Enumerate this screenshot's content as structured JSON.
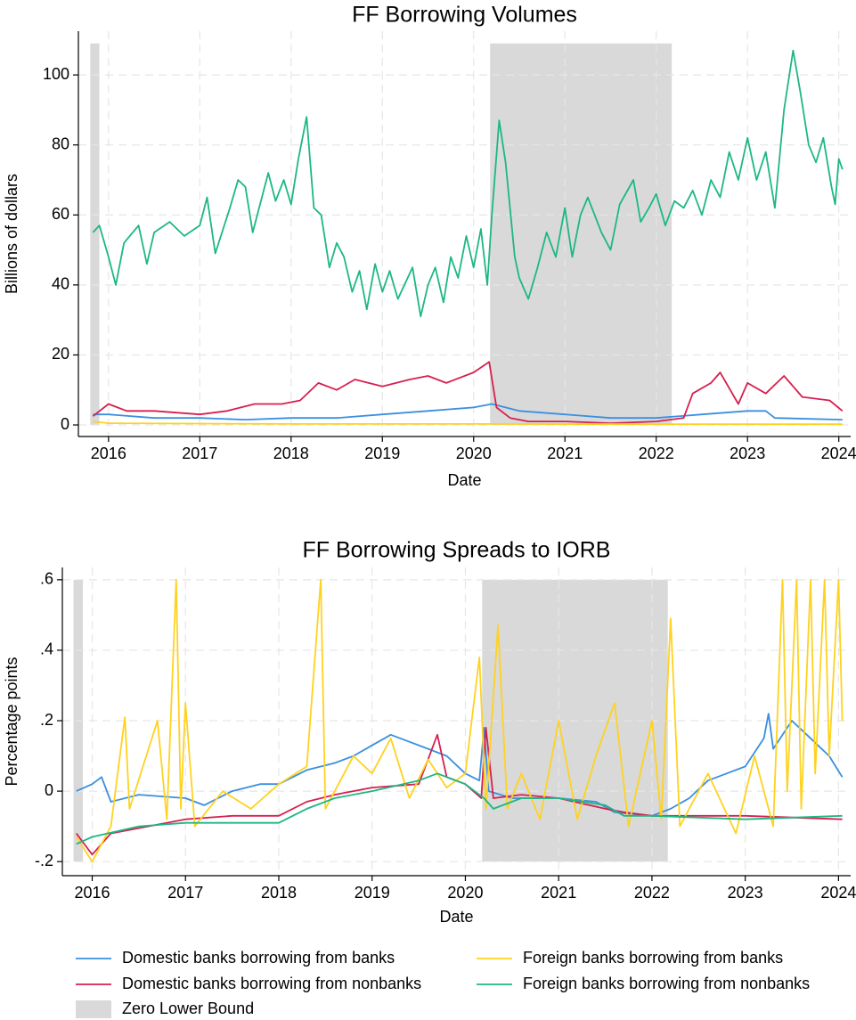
{
  "chart_data": [
    {
      "type": "line",
      "title": "FF Borrowing Volumes",
      "x_label": "Date",
      "y_label": "Billions of dollars",
      "xlim": [
        2015.67,
        2024.13
      ],
      "ylim": [
        -3.3,
        112.5
      ],
      "xticks": [
        2016,
        2017,
        2018,
        2019,
        2020,
        2021,
        2022,
        2023,
        2024
      ],
      "yticks": [
        0,
        20,
        40,
        60,
        80,
        100
      ],
      "grid": true,
      "shade": {
        "name": "Zero Lower Bound",
        "color": "#d9d9d9",
        "span": [
          0,
          109
        ],
        "ranges": [
          [
            2015.8,
            2015.9
          ],
          [
            2020.18,
            2022.17
          ]
        ]
      },
      "series": [
        {
          "name": "Domestic banks borrowing from banks",
          "color": "#3a8fe0",
          "x": [
            2015.83,
            2016.0,
            2016.5,
            2017.0,
            2017.5,
            2018.0,
            2018.5,
            2019.0,
            2019.5,
            2020.0,
            2020.2,
            2020.5,
            2021.0,
            2021.5,
            2022.0,
            2022.5,
            2023.0,
            2023.2,
            2023.3,
            2024.04
          ],
          "values": [
            3,
            3,
            2,
            2,
            1.5,
            2,
            2,
            3,
            4,
            5,
            6,
            4,
            3,
            2,
            2,
            3,
            4,
            4,
            2,
            1.5
          ]
        },
        {
          "name": "Domestic banks borrowing from nonbanks",
          "color": "#d6204f",
          "x": [
            2015.83,
            2016.0,
            2016.2,
            2016.5,
            2017.0,
            2017.3,
            2017.6,
            2017.9,
            2018.1,
            2018.3,
            2018.5,
            2018.7,
            2019.0,
            2019.3,
            2019.5,
            2019.7,
            2020.0,
            2020.17,
            2020.25,
            2020.4,
            2020.6,
            2021.0,
            2021.5,
            2022.0,
            2022.3,
            2022.4,
            2022.6,
            2022.7,
            2022.9,
            2023.0,
            2023.2,
            2023.4,
            2023.6,
            2023.9,
            2024.04
          ],
          "values": [
            2.5,
            6,
            4,
            4,
            3,
            4,
            6,
            6,
            7,
            12,
            10,
            13,
            11,
            13,
            14,
            12,
            15,
            18,
            5,
            2,
            1,
            1,
            0.5,
            1,
            2,
            9,
            12,
            15,
            6,
            12,
            9,
            14,
            8,
            7,
            4
          ]
        },
        {
          "name": "Foreign banks borrowing from banks",
          "color": "#ffd21f",
          "x": [
            2015.83,
            2016.0,
            2018.0,
            2020.0,
            2022.0,
            2024.04
          ],
          "values": [
            1,
            0.5,
            0.3,
            0.3,
            0.2,
            0.2
          ]
        },
        {
          "name": "Foreign banks borrowing from nonbanks",
          "color": "#1db785",
          "x": [
            2015.83,
            2015.9,
            2016.0,
            2016.08,
            2016.17,
            2016.33,
            2016.42,
            2016.5,
            2016.67,
            2016.83,
            2017.0,
            2017.08,
            2017.17,
            2017.33,
            2017.42,
            2017.5,
            2017.58,
            2017.75,
            2017.83,
            2017.92,
            2018.0,
            2018.08,
            2018.17,
            2018.25,
            2018.33,
            2018.42,
            2018.5,
            2018.58,
            2018.67,
            2018.75,
            2018.83,
            2018.92,
            2019.0,
            2019.08,
            2019.17,
            2019.33,
            2019.42,
            2019.5,
            2019.58,
            2019.67,
            2019.75,
            2019.83,
            2019.92,
            2020.0,
            2020.08,
            2020.15,
            2020.2,
            2020.28,
            2020.35,
            2020.45,
            2020.5,
            2020.6,
            2020.7,
            2020.8,
            2020.9,
            2021.0,
            2021.08,
            2021.17,
            2021.25,
            2021.4,
            2021.5,
            2021.6,
            2021.75,
            2021.83,
            2021.92,
            2022.0,
            2022.1,
            2022.2,
            2022.3,
            2022.4,
            2022.5,
            2022.6,
            2022.7,
            2022.8,
            2022.9,
            2023.0,
            2023.1,
            2023.2,
            2023.3,
            2023.4,
            2023.5,
            2023.58,
            2023.67,
            2023.75,
            2023.83,
            2023.92,
            2023.96,
            2024.0,
            2024.04
          ],
          "values": [
            55,
            57,
            48,
            40,
            52,
            57,
            46,
            55,
            58,
            54,
            57,
            65,
            49,
            62,
            70,
            68,
            55,
            72,
            64,
            70,
            63,
            76,
            88,
            62,
            60,
            45,
            52,
            48,
            38,
            44,
            33,
            46,
            38,
            44,
            36,
            45,
            31,
            40,
            45,
            35,
            48,
            42,
            54,
            45,
            56,
            40,
            60,
            87,
            75,
            48,
            42,
            36,
            45,
            55,
            48,
            62,
            48,
            60,
            65,
            55,
            50,
            63,
            70,
            58,
            62,
            66,
            57,
            64,
            62,
            67,
            60,
            70,
            65,
            78,
            70,
            82,
            70,
            78,
            62,
            90,
            107,
            95,
            80,
            75,
            82,
            68,
            63,
            76,
            73
          ]
        }
      ]
    },
    {
      "type": "line",
      "title": "FF Borrowing Spreads to IORB",
      "x_label": "Date",
      "y_label": "Percentage points",
      "xlim": [
        2015.68,
        2024.13
      ],
      "ylim": [
        -0.24,
        0.635
      ],
      "xticks": [
        2016,
        2017,
        2018,
        2019,
        2020,
        2021,
        2022,
        2023,
        2024
      ],
      "yticks": [
        {
          "value": -0.2,
          "label": "-.2"
        },
        0,
        {
          "value": 0.2,
          "label": ".2"
        },
        {
          "value": 0.4,
          "label": ".4"
        },
        {
          "value": 0.6,
          "label": ".6"
        }
      ],
      "grid": true,
      "shade": {
        "color": "#d9d9d9",
        "span": [
          -0.2,
          0.6
        ],
        "ranges": [
          [
            2015.8,
            2015.9
          ],
          [
            2020.18,
            2022.17
          ]
        ]
      },
      "series": [
        {
          "color": "#3a8fe0",
          "x": [
            2015.83,
            2016.0,
            2016.1,
            2016.2,
            2016.5,
            2017.0,
            2017.2,
            2017.5,
            2017.8,
            2018.0,
            2018.3,
            2018.6,
            2018.8,
            2019.0,
            2019.2,
            2019.4,
            2019.6,
            2019.8,
            2020.0,
            2020.15,
            2020.2,
            2020.25,
            2020.5,
            2021.0,
            2021.4,
            2021.6,
            2022.0,
            2022.2,
            2022.4,
            2022.6,
            2022.8,
            2023.0,
            2023.2,
            2023.25,
            2023.3,
            2023.5,
            2023.7,
            2023.9,
            2024.04
          ],
          "values": [
            0,
            0.02,
            0.04,
            -0.03,
            -0.01,
            -0.02,
            -0.04,
            0,
            0.02,
            0.02,
            0.06,
            0.08,
            0.1,
            0.13,
            0.16,
            0.14,
            0.12,
            0.1,
            0.05,
            0.03,
            0.18,
            0,
            -0.02,
            -0.02,
            -0.03,
            -0.06,
            -0.07,
            -0.05,
            -0.02,
            0.03,
            0.05,
            0.07,
            0.15,
            0.22,
            0.12,
            0.2,
            0.15,
            0.1,
            0.04
          ]
        },
        {
          "color": "#d6204f",
          "x": [
            2015.83,
            2016.0,
            2016.2,
            2016.6,
            2017.0,
            2017.5,
            2018.0,
            2018.3,
            2018.6,
            2019.0,
            2019.5,
            2019.7,
            2019.8,
            2020.0,
            2020.17,
            2020.22,
            2020.3,
            2020.6,
            2021.0,
            2021.5,
            2021.7,
            2022.0,
            2023.0,
            2024.04
          ],
          "values": [
            -0.12,
            -0.18,
            -0.12,
            -0.1,
            -0.08,
            -0.07,
            -0.07,
            -0.03,
            -0.01,
            0.01,
            0.02,
            0.16,
            0.04,
            0.02,
            -0.02,
            0.18,
            -0.02,
            -0.01,
            -0.02,
            -0.05,
            -0.06,
            -0.07,
            -0.07,
            -0.08
          ]
        },
        {
          "color": "#ffd21f",
          "x": [
            2015.83,
            2016.0,
            2016.2,
            2016.35,
            2016.4,
            2016.7,
            2016.8,
            2016.9,
            2016.95,
            2017.0,
            2017.1,
            2017.4,
            2017.7,
            2018.0,
            2018.3,
            2018.45,
            2018.5,
            2018.8,
            2019.0,
            2019.2,
            2019.4,
            2019.6,
            2019.8,
            2020.0,
            2020.15,
            2020.22,
            2020.35,
            2020.45,
            2020.6,
            2020.8,
            2021.0,
            2021.2,
            2021.4,
            2021.6,
            2021.75,
            2022.0,
            2022.1,
            2022.2,
            2022.3,
            2022.6,
            2022.9,
            2023.1,
            2023.3,
            2023.4,
            2023.45,
            2023.55,
            2023.6,
            2023.7,
            2023.75,
            2023.85,
            2023.9,
            2024.0,
            2024.04
          ],
          "values": [
            -0.13,
            -0.2,
            -0.1,
            0.21,
            -0.05,
            0.2,
            -0.08,
            0.6,
            -0.05,
            0.25,
            -0.1,
            0,
            -0.05,
            0.02,
            0.07,
            0.6,
            -0.05,
            0.1,
            0.05,
            0.15,
            -0.02,
            0.09,
            0.01,
            0.05,
            0.38,
            -0.05,
            0.47,
            -0.05,
            0.05,
            -0.08,
            0.2,
            -0.08,
            0.1,
            0.25,
            -0.1,
            0.2,
            -0.08,
            0.49,
            -0.1,
            0.05,
            -0.12,
            0.1,
            -0.1,
            0.6,
            0,
            0.6,
            -0.05,
            0.6,
            0.05,
            0.6,
            0.1,
            0.6,
            0.2
          ]
        },
        {
          "color": "#1db785",
          "x": [
            2015.83,
            2016.0,
            2016.5,
            2017.0,
            2017.5,
            2018.0,
            2018.3,
            2018.6,
            2019.0,
            2019.5,
            2019.7,
            2020.0,
            2020.2,
            2020.3,
            2020.6,
            2021.0,
            2021.5,
            2021.7,
            2022.0,
            2023.0,
            2024.04
          ],
          "values": [
            -0.15,
            -0.13,
            -0.1,
            -0.09,
            -0.09,
            -0.09,
            -0.05,
            -0.02,
            0,
            0.03,
            0.05,
            0.02,
            -0.02,
            -0.05,
            -0.02,
            -0.02,
            -0.04,
            -0.07,
            -0.07,
            -0.08,
            -0.07
          ]
        }
      ]
    }
  ]
}
